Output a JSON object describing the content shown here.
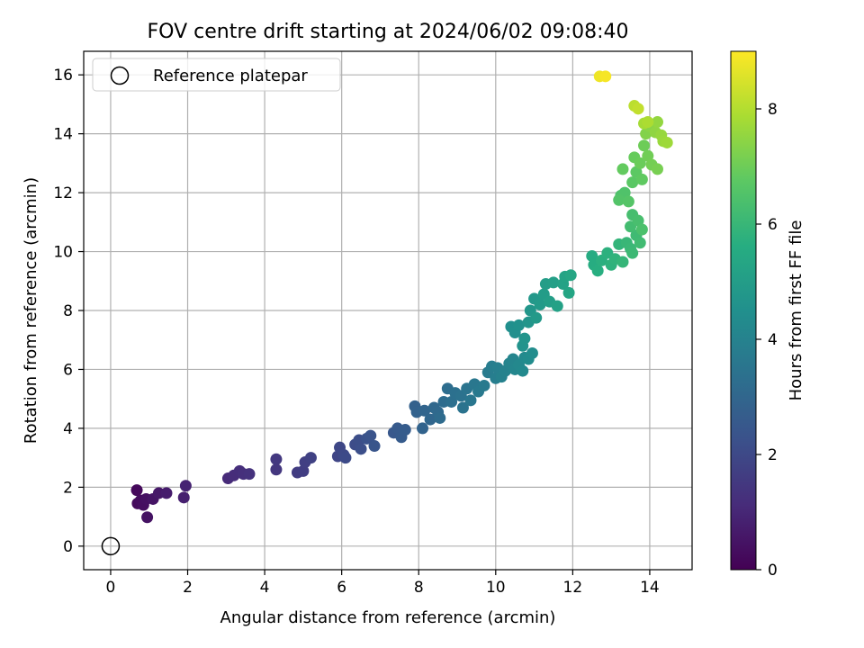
{
  "chart_data": {
    "type": "scatter",
    "title": "FOV centre drift starting at 2024/06/02 09:08:40",
    "xlabel": "Angular distance from reference (arcmin)",
    "ylabel": "Rotation from reference (arcmin)",
    "xlim": [
      -0.7,
      15.1
    ],
    "ylim": [
      -0.8,
      16.8
    ],
    "xticks": [
      0,
      2,
      4,
      6,
      8,
      10,
      12,
      14
    ],
    "yticks": [
      0,
      2,
      4,
      6,
      8,
      10,
      12,
      14,
      16
    ],
    "grid": true,
    "legend": {
      "placement": "upper left",
      "entries": [
        {
          "label": "Reference platepar",
          "marker": "open-circle",
          "color": "#000000"
        }
      ]
    },
    "reference_point": {
      "x": 0,
      "y": 0
    },
    "colorbar": {
      "label": "Hours from first FF file",
      "colormap": "viridis",
      "range": [
        0,
        9
      ],
      "ticks": [
        0,
        2,
        4,
        6,
        8
      ]
    },
    "series": [
      {
        "points": [
          [
            0.68,
            1.9,
            0.2
          ],
          [
            0.7,
            1.45,
            0.25
          ],
          [
            0.78,
            1.55,
            0.3
          ],
          [
            0.85,
            1.4,
            0.35
          ],
          [
            0.92,
            1.6,
            0.4
          ],
          [
            0.95,
            0.98,
            0.45
          ],
          [
            1.1,
            1.6,
            0.5
          ],
          [
            1.25,
            1.8,
            0.6
          ],
          [
            1.45,
            1.8,
            0.7
          ],
          [
            1.9,
            1.65,
            0.8
          ],
          [
            1.95,
            2.05,
            0.9
          ],
          [
            3.05,
            2.3,
            1.1
          ],
          [
            3.2,
            2.4,
            1.15
          ],
          [
            3.35,
            2.55,
            1.2
          ],
          [
            3.45,
            2.45,
            1.25
          ],
          [
            3.6,
            2.45,
            1.3
          ],
          [
            4.3,
            2.6,
            1.45
          ],
          [
            4.3,
            2.95,
            1.5
          ],
          [
            4.85,
            2.5,
            1.6
          ],
          [
            5.0,
            2.55,
            1.65
          ],
          [
            5.05,
            2.85,
            1.7
          ],
          [
            5.2,
            3.0,
            1.75
          ],
          [
            5.9,
            3.05,
            1.9
          ],
          [
            5.95,
            3.35,
            1.95
          ],
          [
            6.05,
            3.1,
            2.0
          ],
          [
            6.1,
            3.0,
            2.05
          ],
          [
            6.35,
            3.45,
            2.1
          ],
          [
            6.45,
            3.6,
            2.15
          ],
          [
            6.5,
            3.3,
            2.2
          ],
          [
            6.65,
            3.65,
            2.3
          ],
          [
            6.75,
            3.75,
            2.35
          ],
          [
            6.85,
            3.4,
            2.4
          ],
          [
            7.35,
            3.85,
            2.5
          ],
          [
            7.45,
            4.0,
            2.55
          ],
          [
            7.55,
            3.7,
            2.6
          ],
          [
            7.65,
            3.95,
            2.65
          ],
          [
            7.9,
            4.75,
            2.8
          ],
          [
            7.95,
            4.55,
            2.85
          ],
          [
            8.1,
            4.0,
            2.9
          ],
          [
            8.15,
            4.6,
            2.95
          ],
          [
            8.3,
            4.3,
            3.0
          ],
          [
            8.4,
            4.7,
            3.05
          ],
          [
            8.5,
            4.55,
            3.1
          ],
          [
            8.55,
            4.35,
            3.15
          ],
          [
            8.65,
            4.9,
            3.2
          ],
          [
            8.75,
            5.35,
            3.25
          ],
          [
            8.85,
            4.9,
            3.3
          ],
          [
            8.95,
            5.2,
            3.35
          ],
          [
            9.1,
            5.1,
            3.4
          ],
          [
            9.15,
            4.7,
            3.45
          ],
          [
            9.25,
            5.35,
            3.5
          ],
          [
            9.35,
            4.95,
            3.55
          ],
          [
            9.45,
            5.5,
            3.6
          ],
          [
            9.55,
            5.25,
            3.65
          ],
          [
            9.7,
            5.45,
            3.7
          ],
          [
            9.8,
            5.9,
            3.75
          ],
          [
            9.9,
            6.1,
            3.8
          ],
          [
            10.0,
            5.7,
            3.85
          ],
          [
            10.05,
            6.05,
            3.9
          ],
          [
            10.15,
            5.75,
            3.95
          ],
          [
            10.25,
            5.95,
            4.0
          ],
          [
            10.35,
            6.2,
            4.05
          ],
          [
            10.45,
            6.35,
            4.1
          ],
          [
            10.5,
            6.0,
            4.15
          ],
          [
            10.6,
            6.15,
            4.2
          ],
          [
            10.7,
            5.95,
            4.25
          ],
          [
            10.75,
            6.4,
            4.3
          ],
          [
            10.85,
            6.35,
            4.35
          ],
          [
            10.95,
            6.55,
            4.4
          ],
          [
            10.4,
            7.45,
            4.45
          ],
          [
            10.5,
            7.25,
            4.5
          ],
          [
            10.6,
            7.5,
            4.55
          ],
          [
            10.7,
            6.8,
            4.6
          ],
          [
            10.75,
            7.05,
            4.65
          ],
          [
            10.85,
            7.6,
            4.7
          ],
          [
            10.9,
            8.0,
            4.75
          ],
          [
            11.0,
            8.4,
            4.8
          ],
          [
            11.05,
            7.75,
            4.85
          ],
          [
            11.15,
            8.2,
            4.9
          ],
          [
            11.25,
            8.55,
            4.95
          ],
          [
            11.3,
            8.9,
            5.0
          ],
          [
            11.4,
            8.3,
            5.05
          ],
          [
            11.5,
            8.95,
            5.1
          ],
          [
            11.6,
            8.15,
            5.15
          ],
          [
            11.75,
            8.9,
            5.2
          ],
          [
            11.8,
            9.15,
            5.25
          ],
          [
            11.9,
            8.6,
            5.3
          ],
          [
            11.95,
            9.2,
            5.35
          ],
          [
            12.5,
            9.85,
            5.55
          ],
          [
            12.55,
            9.55,
            5.6
          ],
          [
            12.65,
            9.35,
            5.65
          ],
          [
            12.75,
            9.7,
            5.7
          ],
          [
            12.9,
            9.95,
            5.75
          ],
          [
            13.0,
            9.55,
            5.8
          ],
          [
            13.1,
            9.75,
            5.85
          ],
          [
            13.2,
            10.25,
            5.9
          ],
          [
            13.3,
            9.65,
            5.95
          ],
          [
            13.4,
            10.3,
            6.0
          ],
          [
            13.5,
            10.1,
            6.05
          ],
          [
            13.55,
            9.95,
            6.1
          ],
          [
            13.65,
            10.55,
            6.15
          ],
          [
            13.75,
            10.3,
            6.2
          ],
          [
            13.5,
            10.85,
            6.25
          ],
          [
            13.55,
            11.25,
            6.3
          ],
          [
            13.7,
            11.05,
            6.35
          ],
          [
            13.8,
            10.75,
            6.4
          ],
          [
            13.25,
            11.9,
            6.45
          ],
          [
            13.35,
            12.0,
            6.5
          ],
          [
            13.2,
            11.75,
            6.55
          ],
          [
            13.45,
            11.7,
            6.6
          ],
          [
            13.55,
            12.35,
            6.7
          ],
          [
            13.65,
            12.7,
            6.75
          ],
          [
            13.8,
            12.45,
            6.8
          ],
          [
            13.3,
            12.8,
            6.85
          ],
          [
            13.6,
            13.2,
            6.9
          ],
          [
            13.75,
            13.0,
            6.95
          ],
          [
            13.85,
            13.6,
            7.0
          ],
          [
            13.95,
            13.25,
            7.05
          ],
          [
            14.05,
            12.95,
            7.1
          ],
          [
            14.2,
            12.8,
            7.15
          ],
          [
            13.9,
            14.0,
            7.3
          ],
          [
            14.0,
            14.25,
            7.4
          ],
          [
            14.15,
            14.05,
            7.5
          ],
          [
            14.2,
            14.4,
            7.55
          ],
          [
            14.3,
            13.95,
            7.6
          ],
          [
            14.35,
            13.75,
            7.65
          ],
          [
            14.45,
            13.7,
            7.7
          ],
          [
            13.85,
            14.35,
            7.8
          ],
          [
            13.95,
            14.4,
            7.9
          ],
          [
            13.6,
            14.95,
            8.1
          ],
          [
            13.7,
            14.85,
            8.2
          ],
          [
            12.7,
            15.95,
            8.8
          ],
          [
            12.85,
            15.95,
            8.9
          ]
        ]
      }
    ]
  }
}
